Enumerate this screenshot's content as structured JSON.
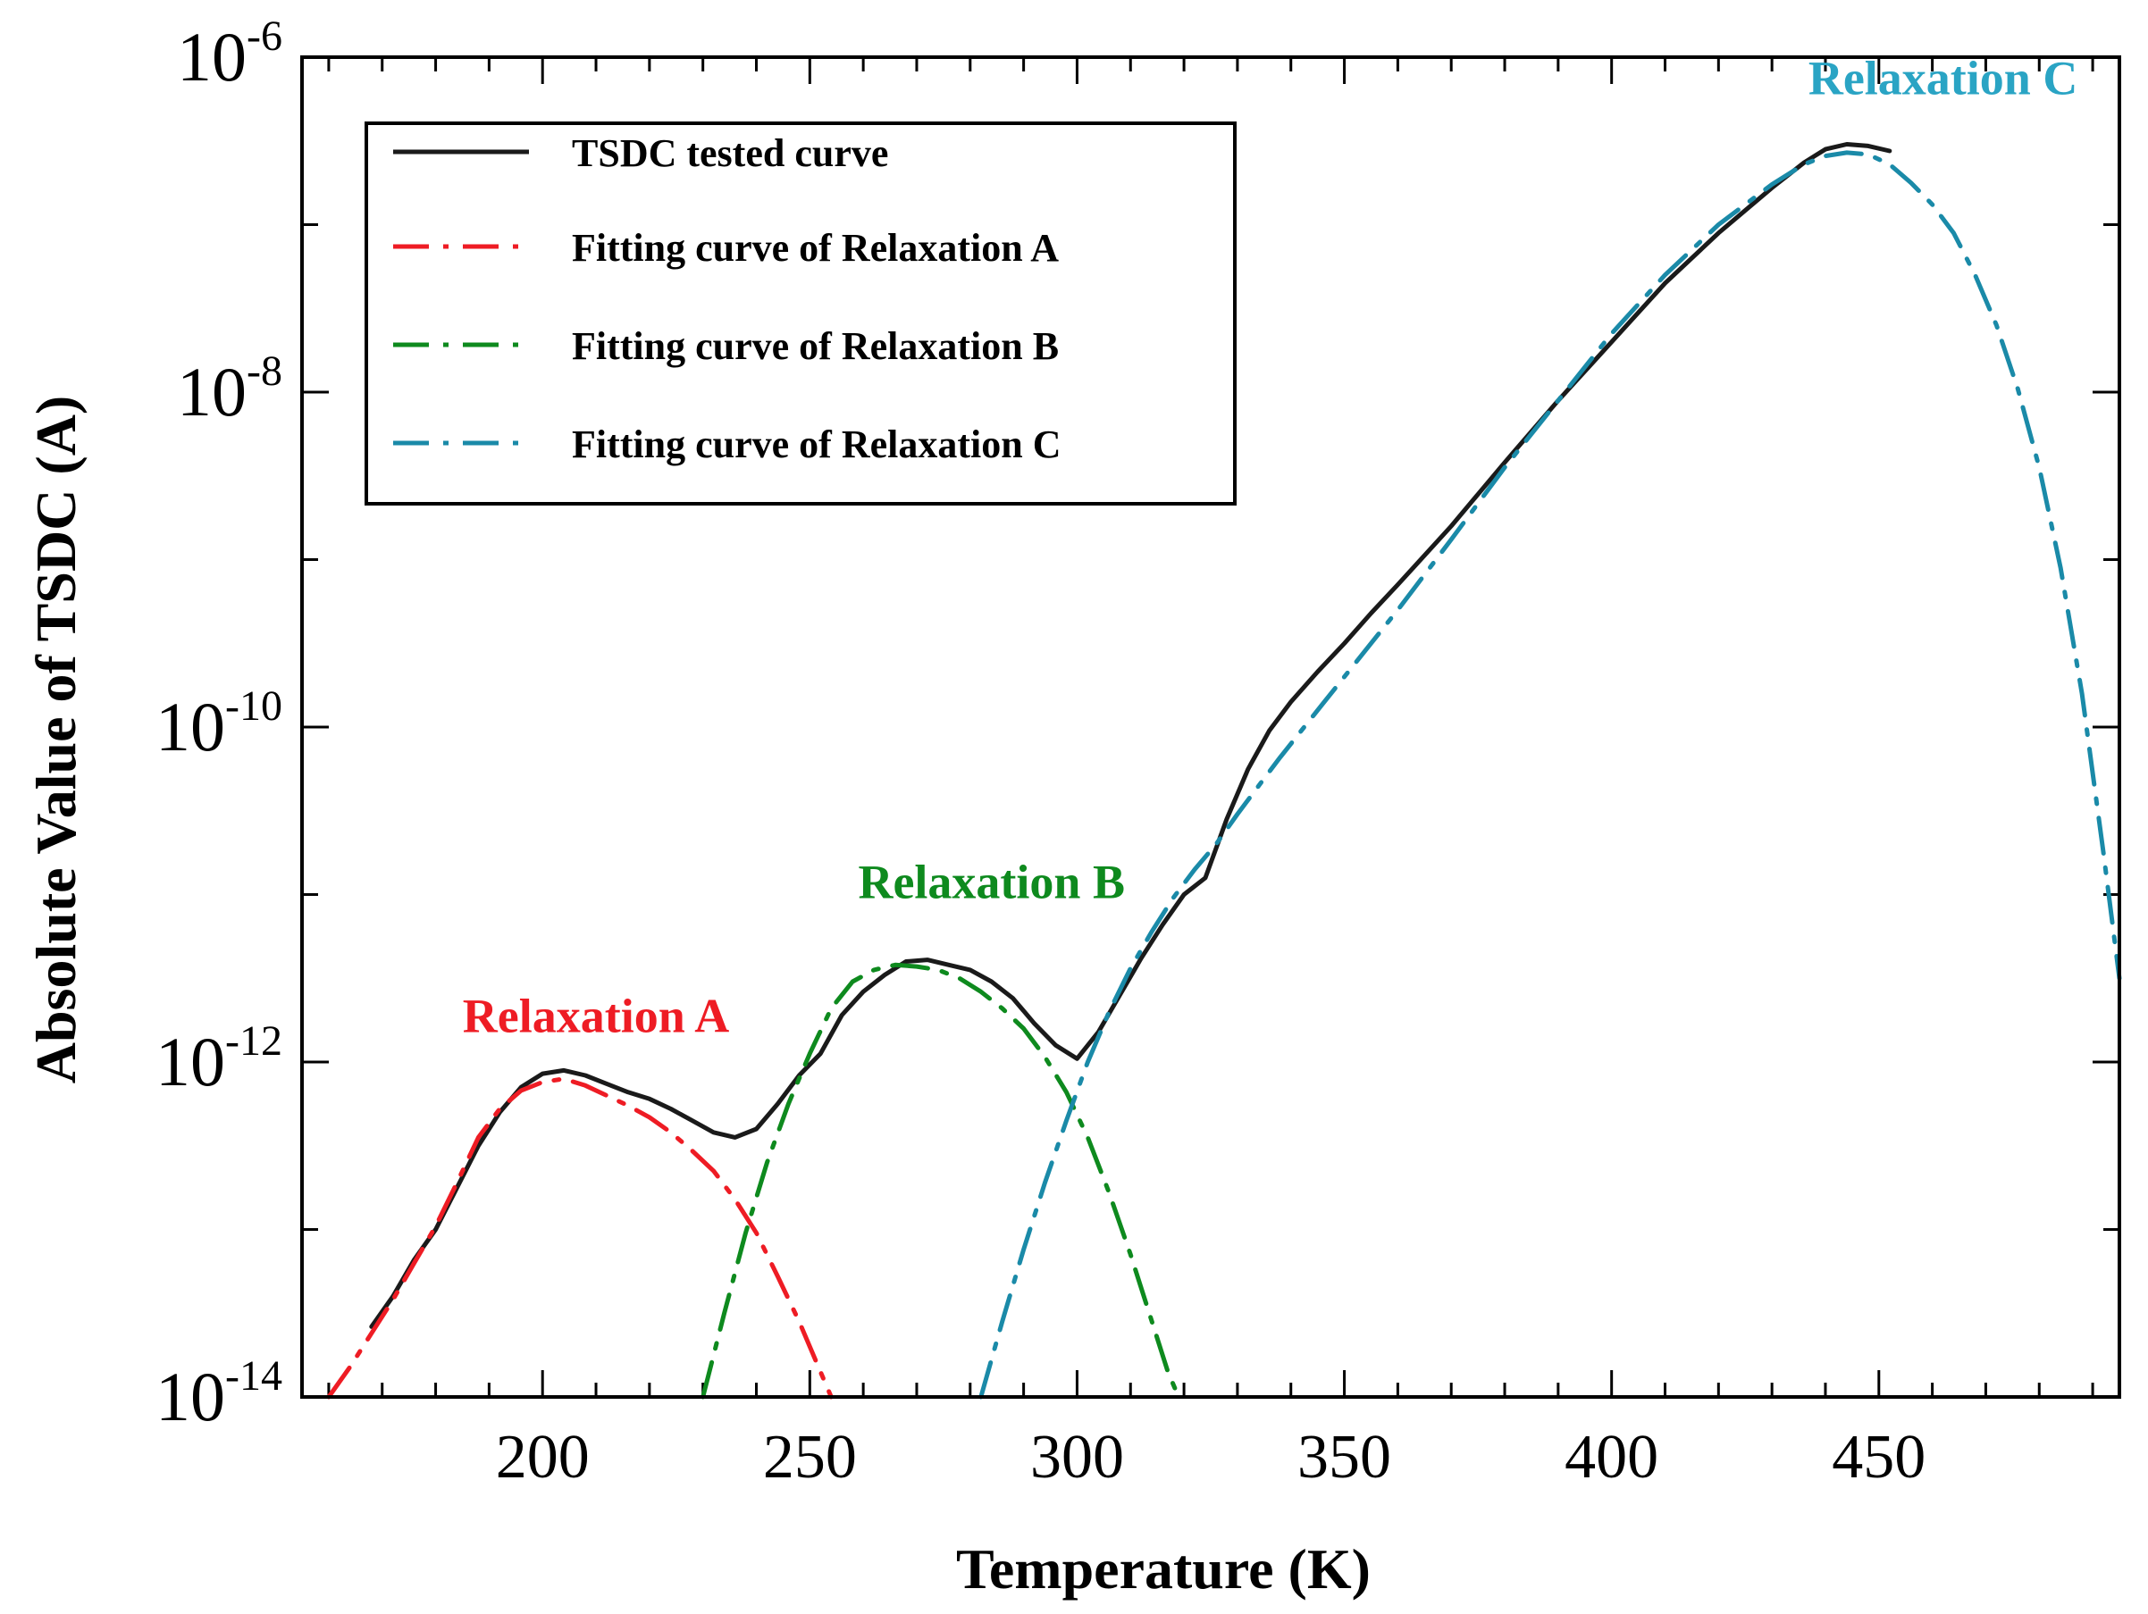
{
  "chart_data": {
    "type": "line",
    "title": "",
    "xlabel": "Temperature (K)",
    "ylabel": "Absolute Value of TSDC (A)",
    "xlim": [
      155,
      495
    ],
    "ylim_log10": [
      -14,
      -6
    ],
    "y_scale": "log",
    "x_ticks": [
      {
        "value": 200,
        "label": "200"
      },
      {
        "value": 250,
        "label": "250"
      },
      {
        "value": 300,
        "label": "300"
      },
      {
        "value": 350,
        "label": "350"
      },
      {
        "value": 400,
        "label": "400"
      },
      {
        "value": 450,
        "label": "450"
      }
    ],
    "y_ticks": [
      {
        "exp": -14,
        "base": "10",
        "sup": "-14"
      },
      {
        "exp": -12,
        "base": "10",
        "sup": "-12"
      },
      {
        "exp": -10,
        "base": "10",
        "sup": "-10"
      },
      {
        "exp": -8,
        "base": "10",
        "sup": "-8"
      },
      {
        "exp": -6,
        "base": "10",
        "sup": "-6"
      }
    ],
    "x_minor_step": 10,
    "y_minor_exps": [
      -13,
      -11,
      -9,
      -7
    ],
    "legend": {
      "position": "top-left",
      "entries": [
        {
          "label": "TSDC tested curve",
          "series": 0
        },
        {
          "label": "Fitting curve of Relaxation A",
          "series": 1
        },
        {
          "label": "Fitting curve of Relaxation B",
          "series": 2
        },
        {
          "label": "Fitting curve of Relaxation C",
          "series": 3
        }
      ]
    },
    "annotations": [
      {
        "text": "Relaxation A",
        "x": 210,
        "log10y": -11.82,
        "color": "#ee1c24"
      },
      {
        "text": "Relaxation B",
        "x": 284,
        "log10y": -11.02,
        "color": "#0e8a1e"
      },
      {
        "text": "Relaxation C",
        "x": 462,
        "log10y": -6.22,
        "color": "#2aa4c4"
      }
    ],
    "series": [
      {
        "name": "TSDC tested curve",
        "color": "#1a1a1a",
        "style": "solid",
        "x": [
          168,
          172,
          176,
          180,
          184,
          188,
          192,
          196,
          200,
          204,
          208,
          212,
          216,
          220,
          224,
          228,
          232,
          236,
          240,
          244,
          248,
          252,
          256,
          260,
          264,
          268,
          272,
          276,
          280,
          284,
          288,
          292,
          296,
          300,
          304,
          308,
          312,
          316,
          320,
          324,
          328,
          332,
          336,
          340,
          345,
          350,
          355,
          360,
          370,
          380,
          390,
          400,
          410,
          420,
          430,
          436,
          440,
          444,
          448,
          452
        ],
        "log10y": [
          -13.58,
          -13.4,
          -13.18,
          -13.0,
          -12.75,
          -12.5,
          -12.3,
          -12.15,
          -12.07,
          -12.05,
          -12.08,
          -12.13,
          -12.18,
          -12.22,
          -12.28,
          -12.35,
          -12.42,
          -12.45,
          -12.4,
          -12.25,
          -12.08,
          -11.95,
          -11.72,
          -11.58,
          -11.48,
          -11.4,
          -11.39,
          -11.42,
          -11.45,
          -11.52,
          -11.62,
          -11.77,
          -11.9,
          -11.98,
          -11.82,
          -11.6,
          -11.38,
          -11.18,
          -11.0,
          -10.9,
          -10.55,
          -10.25,
          -10.02,
          -9.85,
          -9.67,
          -9.5,
          -9.32,
          -9.15,
          -8.8,
          -8.42,
          -8.05,
          -7.7,
          -7.35,
          -7.05,
          -6.78,
          -6.63,
          -6.55,
          -6.52,
          -6.53,
          -6.56
        ]
      },
      {
        "name": "Fitting curve of Relaxation A",
        "color": "#ee1c24",
        "style": "dashdot",
        "x": [
          160,
          164,
          168,
          172,
          176,
          180,
          184,
          188,
          192,
          196,
          200,
          204,
          208,
          212,
          216,
          220,
          224,
          228,
          232,
          236,
          240,
          244,
          248,
          252,
          254
        ],
        "log10y": [
          -14.0,
          -13.82,
          -13.62,
          -13.42,
          -13.2,
          -12.98,
          -12.72,
          -12.45,
          -12.28,
          -12.17,
          -12.12,
          -12.1,
          -12.14,
          -12.2,
          -12.26,
          -12.33,
          -12.42,
          -12.53,
          -12.65,
          -12.82,
          -13.02,
          -13.28,
          -13.55,
          -13.85,
          -14.0
        ]
      },
      {
        "name": "Fitting curve of Relaxation B",
        "color": "#0e8a1e",
        "style": "dashdot",
        "x": [
          230,
          234,
          238,
          242,
          246,
          250,
          254,
          258,
          262,
          266,
          270,
          274,
          278,
          282,
          286,
          290,
          294,
          298,
          302,
          306,
          310,
          314,
          317,
          319
        ],
        "log10y": [
          -14.0,
          -13.5,
          -13.02,
          -12.6,
          -12.25,
          -11.95,
          -11.68,
          -11.52,
          -11.45,
          -11.42,
          -11.43,
          -11.45,
          -11.5,
          -11.58,
          -11.68,
          -11.8,
          -11.97,
          -12.18,
          -12.45,
          -12.78,
          -13.15,
          -13.55,
          -13.85,
          -14.0
        ]
      },
      {
        "name": "Fitting curve of Relaxation C",
        "color": "#1a8aa8",
        "style": "dashdot",
        "x": [
          282,
          286,
          290,
          294,
          298,
          302,
          306,
          310,
          314,
          318,
          322,
          326,
          330,
          334,
          338,
          342,
          346,
          350,
          360,
          370,
          380,
          390,
          400,
          410,
          420,
          430,
          436,
          440,
          444,
          448,
          452,
          456,
          460,
          464,
          468,
          472,
          476,
          480,
          484,
          488,
          492,
          495
        ],
        "log10y": [
          -14.0,
          -13.55,
          -13.12,
          -12.72,
          -12.35,
          -12.0,
          -11.7,
          -11.44,
          -11.22,
          -11.02,
          -10.85,
          -10.7,
          -10.52,
          -10.35,
          -10.18,
          -10.02,
          -9.86,
          -9.7,
          -9.3,
          -8.88,
          -8.45,
          -8.05,
          -7.65,
          -7.3,
          -7.0,
          -6.76,
          -6.64,
          -6.59,
          -6.57,
          -6.58,
          -6.64,
          -6.75,
          -6.88,
          -7.05,
          -7.3,
          -7.6,
          -7.98,
          -8.45,
          -9.05,
          -9.8,
          -10.75,
          -11.5
        ]
      }
    ]
  }
}
